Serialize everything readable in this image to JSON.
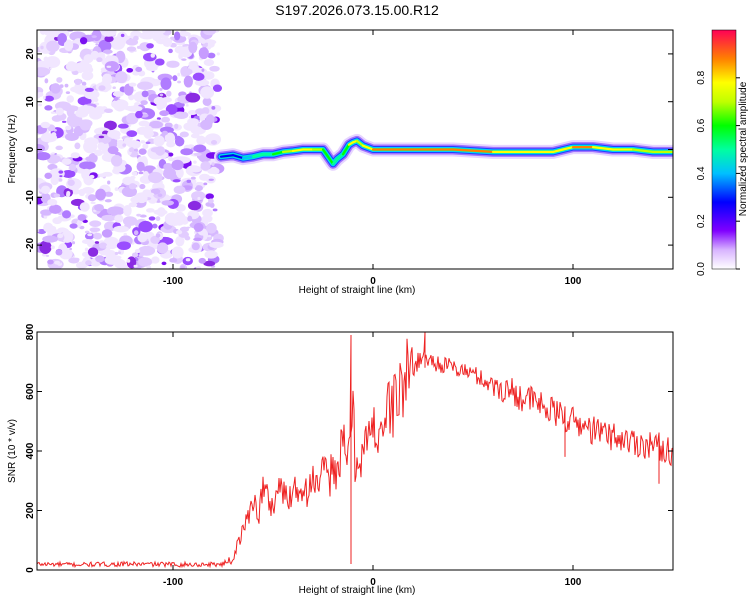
{
  "figure": {
    "title": "S197.2026.073.15.00.R12"
  },
  "chart_data": [
    {
      "type": "heatmap",
      "title": "S197.2026.073.15.00.R12",
      "xlabel": "Height of straight line (km)",
      "ylabel": "Frequency (Hz)",
      "xlim": [
        -168,
        150
      ],
      "ylim": [
        -25,
        25
      ],
      "xticks": [
        -100,
        0,
        100
      ],
      "xtick_labels": [
        "-100",
        "0",
        "100"
      ],
      "yticks": [
        -20,
        -10,
        0,
        10,
        20
      ],
      "ytick_labels": [
        "-20",
        "-10",
        "0",
        "10",
        "20"
      ],
      "colorbar": {
        "label": "Normalized spectral amplitude",
        "range": [
          0,
          1
        ],
        "ticks": [
          0.0,
          0.2,
          0.4,
          0.6,
          0.8
        ],
        "tick_labels": [
          "0.0",
          "0.2",
          "0.4",
          "0.6",
          "0.8"
        ]
      },
      "noise_region_x": [
        -168,
        -77
      ],
      "ridge": {
        "x": [
          -76,
          -70,
          -65,
          -60,
          -55,
          -50,
          -45,
          -40,
          -35,
          -30,
          -25,
          -20,
          -18,
          -15,
          -12,
          -10,
          -8,
          -5,
          0,
          10,
          20,
          40,
          60,
          80,
          90,
          95,
          100,
          110,
          120,
          130,
          140,
          150
        ],
        "y": [
          -1.5,
          -1.2,
          -1.8,
          -1.5,
          -1.0,
          -1.0,
          -0.5,
          -0.3,
          0.0,
          0.0,
          0.0,
          -3.0,
          -2.0,
          -1.0,
          1.0,
          1.5,
          1.8,
          0.8,
          0.0,
          0.0,
          0.0,
          0.0,
          -0.5,
          -0.5,
          -0.5,
          0.0,
          0.5,
          0.5,
          0.0,
          0.0,
          -0.5,
          -0.5
        ],
        "amplitude": [
          0.25,
          0.35,
          0.4,
          0.45,
          0.55,
          0.6,
          0.7,
          0.8,
          0.85,
          0.8,
          0.7,
          0.5,
          0.55,
          0.6,
          0.75,
          0.85,
          0.8,
          0.75,
          0.85,
          0.95,
          0.9,
          0.92,
          0.88,
          0.85,
          0.8,
          0.82,
          0.86,
          0.9,
          0.85,
          0.8,
          0.75,
          0.7
        ]
      }
    },
    {
      "type": "line",
      "xlabel": "Height of straight line (km)",
      "ylabel": "SNR (10 * v/v)",
      "xlim": [
        -168,
        150
      ],
      "ylim": [
        0,
        800
      ],
      "xticks": [
        -100,
        0,
        100
      ],
      "xtick_labels": [
        "-100",
        "0",
        "100"
      ],
      "yticks": [
        0,
        200,
        400,
        600,
        800
      ],
      "ytick_labels": [
        "0",
        "200",
        "400",
        "600",
        "800"
      ],
      "series": [
        {
          "name": "SNR",
          "color": "#ee2222",
          "x": [
            -168,
            -150,
            -120,
            -90,
            -75,
            -70,
            -67,
            -65,
            -63,
            -60,
            -57,
            -55,
            -52,
            -50,
            -47,
            -45,
            -42,
            -40,
            -37,
            -35,
            -32,
            -30,
            -28,
            -25,
            -22,
            -20,
            -18,
            -15,
            -13,
            -12,
            -11,
            -10,
            -9,
            -8,
            -5,
            -2,
            0,
            5,
            10,
            15,
            20,
            25,
            30,
            35,
            40,
            45,
            50,
            55,
            60,
            65,
            70,
            75,
            80,
            90,
            100,
            110,
            120,
            130,
            140,
            150
          ],
          "values": [
            20,
            18,
            20,
            18,
            20,
            40,
            100,
            130,
            170,
            240,
            190,
            280,
            230,
            210,
            300,
            250,
            240,
            290,
            260,
            300,
            250,
            340,
            270,
            330,
            290,
            380,
            320,
            430,
            330,
            450,
            500,
            560,
            340,
            380,
            400,
            450,
            460,
            500,
            560,
            620,
            680,
            720,
            700,
            690,
            680,
            670,
            660,
            640,
            620,
            610,
            600,
            580,
            570,
            530,
            500,
            470,
            450,
            430,
            420,
            400
          ]
        }
      ],
      "spikes": [
        {
          "x": -11,
          "values": [
            790,
            20
          ]
        },
        {
          "x": 26,
          "values": [
            800,
            680
          ]
        },
        {
          "x": 96,
          "values": [
            550,
            380
          ]
        },
        {
          "x": 143,
          "values": [
            460,
            290
          ]
        }
      ]
    }
  ]
}
